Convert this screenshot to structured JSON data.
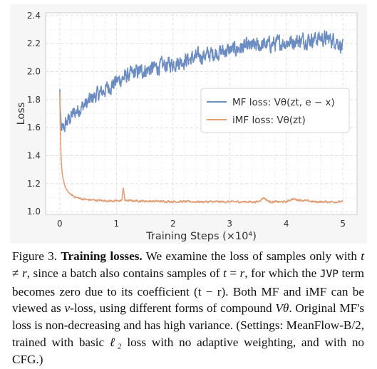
{
  "chart_data": {
    "type": "line",
    "xlabel": "Training Steps (×10⁴)",
    "ylabel": "Loss",
    "xlim": [
      -0.25,
      5.25
    ],
    "ylim": [
      0.98,
      2.42
    ],
    "xticks": [
      "0",
      "1",
      "2",
      "3",
      "4",
      "5"
    ],
    "yticks": [
      "1.0",
      "1.2",
      "1.4",
      "1.6",
      "1.8",
      "2.0",
      "2.2",
      "2.4"
    ],
    "grid": true,
    "legend_position": "center-right",
    "series": [
      {
        "name": "MF loss: Vθ(zt, e − x)",
        "color": "#6b8cc0",
        "x": [
          0.0,
          0.02,
          0.05,
          0.1,
          0.2,
          0.3,
          0.4,
          0.5,
          0.6,
          0.7,
          0.8,
          0.9,
          1.0,
          1.2,
          1.4,
          1.6,
          1.8,
          2.0,
          2.2,
          2.4,
          2.6,
          2.8,
          3.0,
          3.2,
          3.4,
          3.6,
          3.8,
          4.0,
          4.2,
          4.4,
          4.6,
          4.8,
          4.9,
          5.0
        ],
        "values": [
          1.86,
          1.6,
          1.58,
          1.62,
          1.68,
          1.72,
          1.75,
          1.78,
          1.82,
          1.84,
          1.87,
          1.9,
          1.93,
          1.97,
          2.0,
          2.02,
          2.04,
          2.06,
          2.08,
          2.1,
          2.12,
          2.14,
          2.15,
          2.17,
          2.18,
          2.19,
          2.2,
          2.21,
          2.22,
          2.23,
          2.24,
          2.23,
          2.22,
          2.17
        ]
      },
      {
        "name": "iMF loss: Vθ(zt)",
        "color": "#e0a07a",
        "x": [
          0.0,
          0.01,
          0.02,
          0.03,
          0.05,
          0.08,
          0.1,
          0.15,
          0.2,
          0.3,
          0.4,
          0.5,
          0.7,
          1.0,
          1.1,
          1.12,
          1.15,
          1.5,
          2.0,
          2.5,
          3.0,
          3.5,
          3.6,
          3.7,
          4.0,
          4.1,
          4.5,
          5.0
        ],
        "values": [
          1.85,
          1.6,
          1.42,
          1.33,
          1.25,
          1.2,
          1.17,
          1.14,
          1.12,
          1.1,
          1.09,
          1.085,
          1.08,
          1.075,
          1.08,
          1.18,
          1.08,
          1.075,
          1.072,
          1.07,
          1.07,
          1.07,
          1.1,
          1.07,
          1.07,
          1.09,
          1.07,
          1.07
        ]
      }
    ]
  },
  "caption": {
    "figure_label": "Figure 3.",
    "title": "Training losses.",
    "t1": "We examine the loss of samples only with",
    "m_t": "t",
    "neq": "≠",
    "m_r": "r",
    "t2": ", since a batch also contains samples of",
    "eq_t": "t",
    "eq_sign": "=",
    "eq_r": "r",
    "t3": ", for which the",
    "jvp": "JVP",
    "t4": "term becomes zero due to its coefficient",
    "coef": "(t − r)",
    "t5": ". Both MF and iMF can be viewed as",
    "v_sym": "v",
    "t6": "-loss, using different forms of compound",
    "v_theta": "Vθ",
    "t7": ". Original MF's loss is non-decreasing and has high variance. (Settings: MeanFlow-B/2, trained with basic",
    "l2": "ℓ₂",
    "t8": "loss with no adaptive weighting, and with no CFG.)"
  }
}
